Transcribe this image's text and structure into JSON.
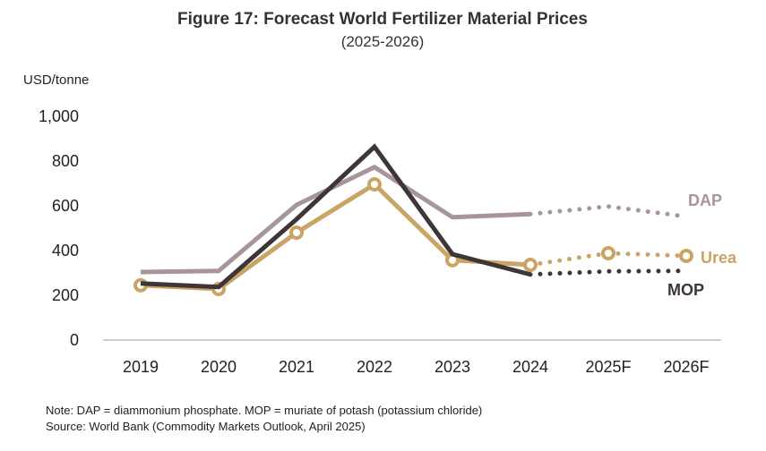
{
  "chart_data": {
    "type": "line",
    "title": "Figure 17: Forecast World Fertilizer Material Prices",
    "subtitle": "(2025-2026)",
    "ylabel": "USD/tonne",
    "xlabel": "",
    "categories": [
      "2019",
      "2020",
      "2021",
      "2022",
      "2023",
      "2024",
      "2025F",
      "2026F"
    ],
    "ylim": [
      0,
      1000
    ],
    "yticks": [
      {
        "v": 0,
        "label": "0"
      },
      {
        "v": 200,
        "label": "200"
      },
      {
        "v": 400,
        "label": "400"
      },
      {
        "v": 600,
        "label": "600"
      },
      {
        "v": 800,
        "label": "800"
      },
      {
        "v": 1000,
        "label": "1,000"
      }
    ],
    "grid": false,
    "forecast_from": "2024",
    "series": [
      {
        "name": "DAP",
        "color": "#a89597",
        "markers": false,
        "values": [
          304,
          309,
          604,
          773,
          549,
          563,
          597,
          552
        ]
      },
      {
        "name": "Urea",
        "color": "#c9a464",
        "markers": true,
        "values": [
          245,
          228,
          480,
          696,
          357,
          336,
          388,
          376
        ]
      },
      {
        "name": "MOP",
        "color": "#3e3536",
        "markers": false,
        "values": [
          253,
          237,
          540,
          864,
          384,
          293,
          307,
          309
        ]
      }
    ]
  },
  "note": "Note: DAP = diammonium phosphate. MOP = muriate of potash (potassium chloride)",
  "source": "Source: World Bank (Commodity Markets Outlook, April 2025)"
}
